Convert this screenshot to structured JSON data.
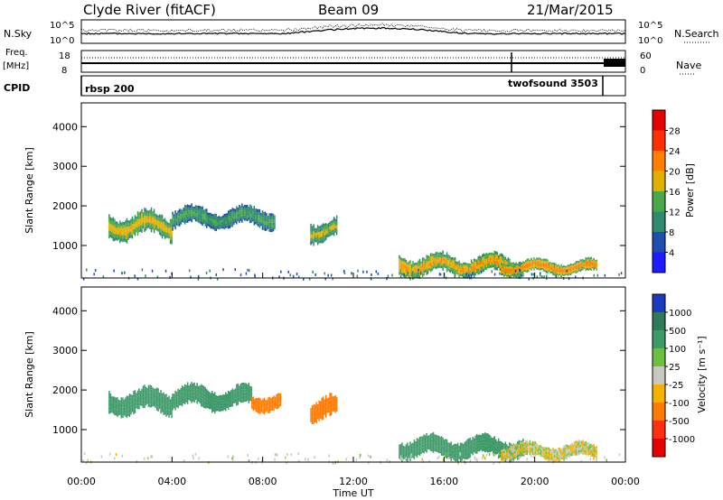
{
  "header": {
    "station": "Clyde River (fitACF)",
    "beam": "Beam 09",
    "date": "21/Mar/2015"
  },
  "strips": {
    "nsky_label": "N.Sky",
    "nsky_ticks": [
      "10^5",
      "10^0"
    ],
    "nsearch_label": "N.Search",
    "freq_label_top": "Freq.",
    "freq_label_bottom": "[MHz]",
    "freq_ticks": [
      "18",
      "8"
    ],
    "nave_label": "Nave",
    "nave_ticks": [
      "60",
      "0"
    ],
    "cpid_label": "CPID",
    "cpid_segments": [
      {
        "name": "rbsp 200",
        "start_hour": 0.0
      },
      {
        "name": "twofsound 3503",
        "start_hour": 18.7
      }
    ]
  },
  "chart_data": [
    {
      "type": "heatmap",
      "quantity": "Power",
      "ylabel": "Slant Range [km]",
      "xlabel": "Time UT",
      "ylim": [
        180,
        4600
      ],
      "yticks": [
        1000,
        2000,
        3000,
        4000
      ],
      "xticks": [
        "00:00",
        "04:00",
        "08:00",
        "12:00",
        "16:00",
        "20:00",
        "00:00"
      ],
      "xlim_hours": [
        0,
        24
      ],
      "colorbar": {
        "label": "Power [dB]",
        "ticks": [
          "4",
          "8",
          "12",
          "16",
          "20",
          "24",
          "28"
        ],
        "colors": [
          "#1c1cff",
          "#1f4db0",
          "#2f8a6e",
          "#4aa84a",
          "#e0b000",
          "#ff8000",
          "#ff3000",
          "#e60000"
        ]
      },
      "echo_regions": [
        {
          "t0": 1.2,
          "t1": 4.0,
          "r_center": 1500,
          "r_half": 320,
          "level": 20
        },
        {
          "t0": 4.0,
          "t1": 8.5,
          "r_center": 1700,
          "r_half": 250,
          "level": 14
        },
        {
          "t0": 10.1,
          "t1": 11.3,
          "r_center": 1400,
          "r_half": 280,
          "level": 18
        },
        {
          "t0": 14.0,
          "t1": 19.5,
          "r_center": 500,
          "r_half": 260,
          "level": 22
        },
        {
          "t0": 18.5,
          "t1": 22.7,
          "r_center": 450,
          "r_half": 180,
          "level": 24
        }
      ]
    },
    {
      "type": "heatmap",
      "quantity": "Velocity",
      "ylabel": "Slant Range [km]",
      "xlabel": "Time UT",
      "ylim": [
        180,
        4600
      ],
      "yticks": [
        1000,
        2000,
        3000,
        4000
      ],
      "xticks": [
        "00:00",
        "04:00",
        "08:00",
        "12:00",
        "16:00",
        "20:00",
        "00:00"
      ],
      "xlim_hours": [
        0,
        24
      ],
      "colorbar": {
        "label": "Velocity [m s⁻¹]",
        "ticks": [
          "1000",
          "500",
          "100",
          "25",
          "-25",
          "-100",
          "-500",
          "-1000"
        ],
        "colors": [
          "#1c3cc0",
          "#2e7a5a",
          "#3f9a6a",
          "#6cc040",
          "#c8c8c0",
          "#f5b000",
          "#ff7a00",
          "#ff3010",
          "#e60000"
        ]
      },
      "echo_regions": [
        {
          "t0": 1.2,
          "t1": 4.0,
          "r_center": 1700,
          "r_half": 300,
          "level": 200
        },
        {
          "t0": 4.0,
          "t1": 7.5,
          "r_center": 1800,
          "r_half": 280,
          "level": 300
        },
        {
          "t0": 7.5,
          "t1": 8.8,
          "r_center": 1700,
          "r_half": 220,
          "level": -400
        },
        {
          "t0": 10.1,
          "t1": 11.3,
          "r_center": 1500,
          "r_half": 300,
          "level": -300
        },
        {
          "t0": 14.0,
          "t1": 19.5,
          "r_center": 550,
          "r_half": 260,
          "level": 300
        },
        {
          "t0": 18.5,
          "t1": 22.7,
          "r_center": 450,
          "r_half": 200,
          "level": 0
        }
      ]
    }
  ]
}
